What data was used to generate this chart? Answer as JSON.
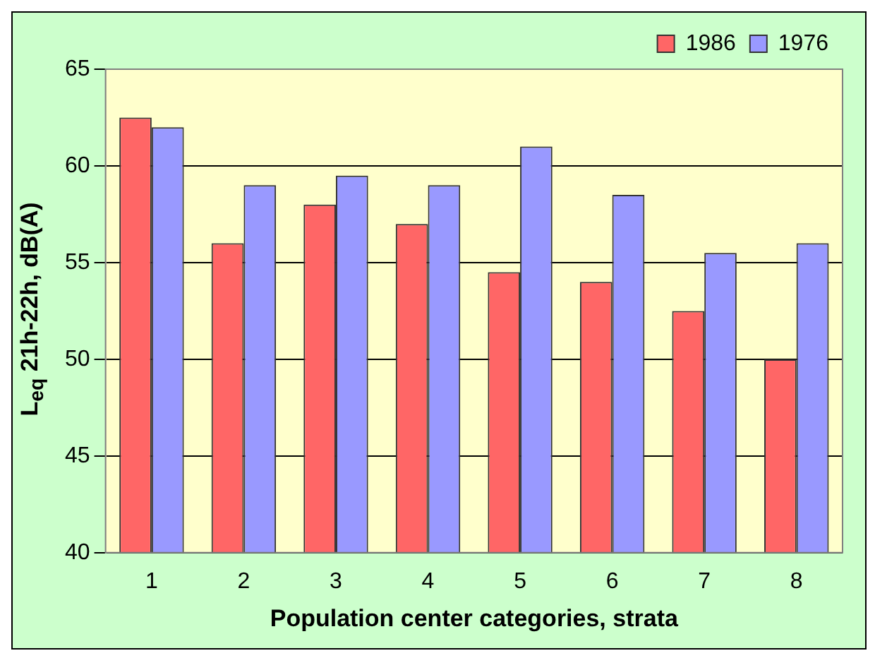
{
  "chart_data": {
    "type": "bar",
    "xlabel": "Population center categories, strata",
    "ylabel": "L$_{eq}$ 21h-22h, dB(A)",
    "categories": [
      "1",
      "2",
      "3",
      "4",
      "5",
      "6",
      "7",
      "8"
    ],
    "series": [
      {
        "name": "1986",
        "color": "#ff6666",
        "values": [
          62.5,
          56,
          58,
          57,
          54.5,
          54,
          52.5,
          50
        ]
      },
      {
        "name": "1976",
        "color": "#9999ff",
        "values": [
          62,
          59,
          59.5,
          59,
          61,
          58.5,
          55.5,
          56
        ]
      }
    ],
    "ylim": [
      40,
      65
    ],
    "yticks": [
      40,
      45,
      50,
      55,
      60,
      65
    ],
    "grid": "y",
    "legend": "top right"
  }
}
